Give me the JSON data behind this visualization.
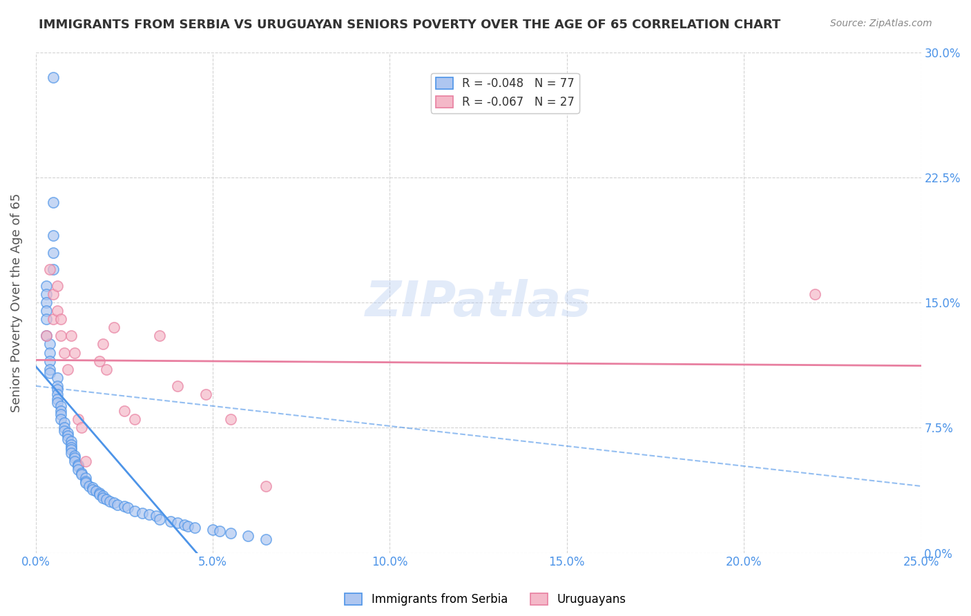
{
  "title": "IMMIGRANTS FROM SERBIA VS URUGUAYAN SENIORS POVERTY OVER THE AGE OF 65 CORRELATION CHART",
  "source": "Source: ZipAtlas.com",
  "ylabel": "Seniors Poverty Over the Age of 65",
  "xlabel_ticks": [
    "0.0%",
    "5.0%",
    "10.0%",
    "15.0%",
    "20.0%",
    "25.0%"
  ],
  "xlabel_vals": [
    0.0,
    0.05,
    0.1,
    0.15,
    0.2,
    0.25
  ],
  "ylabel_ticks": [
    "0.0%",
    "7.5%",
    "15.0%",
    "22.5%",
    "30.0%"
  ],
  "ylabel_vals": [
    0.0,
    0.075,
    0.15,
    0.225,
    0.3
  ],
  "xlim": [
    0.0,
    0.25
  ],
  "ylim": [
    0.0,
    0.3
  ],
  "legend": [
    {
      "label": "R = -0.048   N = 77",
      "color": "#aec6f0"
    },
    {
      "label": "R = -0.067   N = 27",
      "color": "#f4b8c8"
    }
  ],
  "legend_bottom": [
    {
      "label": "Immigrants from Serbia",
      "color": "#aec6f0"
    },
    {
      "label": "Uruguayans",
      "color": "#f4b8c8"
    }
  ],
  "serbia_x": [
    0.005,
    0.005,
    0.005,
    0.005,
    0.005,
    0.003,
    0.003,
    0.003,
    0.003,
    0.003,
    0.003,
    0.004,
    0.004,
    0.004,
    0.004,
    0.004,
    0.006,
    0.006,
    0.006,
    0.006,
    0.006,
    0.006,
    0.007,
    0.007,
    0.007,
    0.007,
    0.008,
    0.008,
    0.008,
    0.009,
    0.009,
    0.009,
    0.01,
    0.01,
    0.01,
    0.01,
    0.01,
    0.011,
    0.011,
    0.011,
    0.012,
    0.012,
    0.012,
    0.013,
    0.013,
    0.014,
    0.014,
    0.014,
    0.015,
    0.016,
    0.016,
    0.017,
    0.018,
    0.018,
    0.019,
    0.019,
    0.02,
    0.021,
    0.022,
    0.023,
    0.025,
    0.026,
    0.028,
    0.03,
    0.032,
    0.034,
    0.035,
    0.038,
    0.04,
    0.042,
    0.043,
    0.045,
    0.05,
    0.052,
    0.055,
    0.06,
    0.065
  ],
  "serbia_y": [
    0.285,
    0.21,
    0.19,
    0.18,
    0.17,
    0.16,
    0.155,
    0.15,
    0.145,
    0.14,
    0.13,
    0.125,
    0.12,
    0.115,
    0.11,
    0.108,
    0.105,
    0.1,
    0.098,
    0.095,
    0.092,
    0.09,
    0.088,
    0.085,
    0.083,
    0.08,
    0.078,
    0.075,
    0.073,
    0.072,
    0.07,
    0.068,
    0.067,
    0.065,
    0.063,
    0.062,
    0.06,
    0.058,
    0.057,
    0.055,
    0.053,
    0.052,
    0.05,
    0.048,
    0.047,
    0.045,
    0.043,
    0.042,
    0.04,
    0.039,
    0.038,
    0.037,
    0.036,
    0.035,
    0.034,
    0.033,
    0.032,
    0.031,
    0.03,
    0.029,
    0.028,
    0.027,
    0.025,
    0.024,
    0.023,
    0.022,
    0.02,
    0.019,
    0.018,
    0.017,
    0.016,
    0.015,
    0.014,
    0.013,
    0.012,
    0.01,
    0.008
  ],
  "uruguay_x": [
    0.003,
    0.004,
    0.005,
    0.005,
    0.006,
    0.006,
    0.007,
    0.007,
    0.008,
    0.009,
    0.01,
    0.011,
    0.012,
    0.013,
    0.014,
    0.018,
    0.019,
    0.02,
    0.022,
    0.025,
    0.028,
    0.035,
    0.04,
    0.048,
    0.055,
    0.065,
    0.22
  ],
  "uruguay_y": [
    0.13,
    0.17,
    0.14,
    0.155,
    0.145,
    0.16,
    0.13,
    0.14,
    0.12,
    0.11,
    0.13,
    0.12,
    0.08,
    0.075,
    0.055,
    0.115,
    0.125,
    0.11,
    0.135,
    0.085,
    0.08,
    0.13,
    0.1,
    0.095,
    0.08,
    0.04,
    0.155
  ],
  "serbia_line_color": "#4d94e8",
  "uruguay_line_color": "#e87fa0",
  "serbia_scatter_color": "#aec6f0",
  "uruguay_scatter_color": "#f4b8c8",
  "watermark": "ZIPatlas",
  "background_color": "#ffffff",
  "grid_color": "#d3d3d3"
}
